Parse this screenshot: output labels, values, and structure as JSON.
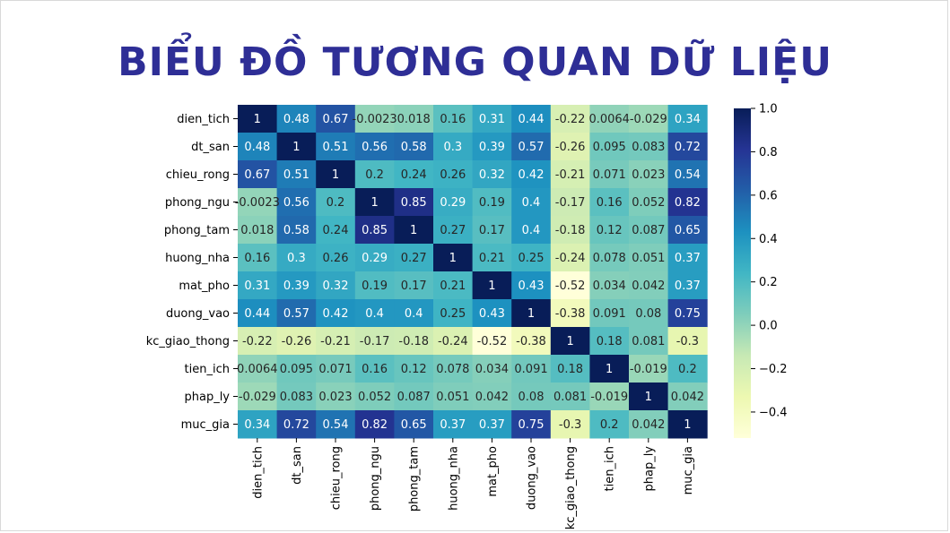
{
  "slide": {
    "title": "BIỂU ĐỒ TƯƠNG QUAN DỮ LIỆU"
  },
  "chart_data": {
    "type": "heatmap",
    "title": "",
    "colormap": "YlGnBu",
    "labels": [
      "dien_tich",
      "dt_san",
      "chieu_rong",
      "phong_ngu",
      "phong_tam",
      "huong_nha",
      "mat_pho",
      "duong_vao",
      "kc_giao_thong",
      "tien_ich",
      "phap_ly",
      "muc_gia"
    ],
    "matrix": [
      [
        1,
        0.48,
        0.67,
        -0.0023,
        0.018,
        0.16,
        0.31,
        0.44,
        -0.22,
        0.0064,
        -0.029,
        0.34
      ],
      [
        0.48,
        1,
        0.51,
        0.56,
        0.58,
        0.3,
        0.39,
        0.57,
        -0.26,
        0.095,
        0.083,
        0.72
      ],
      [
        0.67,
        0.51,
        1,
        0.2,
        0.24,
        0.26,
        0.32,
        0.42,
        -0.21,
        0.071,
        0.023,
        0.54
      ],
      [
        -0.0023,
        0.56,
        0.2,
        1,
        0.85,
        0.29,
        0.19,
        0.4,
        -0.17,
        0.16,
        0.052,
        0.82
      ],
      [
        0.018,
        0.58,
        0.24,
        0.85,
        1,
        0.27,
        0.17,
        0.4,
        -0.18,
        0.12,
        0.087,
        0.65
      ],
      [
        0.16,
        0.3,
        0.26,
        0.29,
        0.27,
        1,
        0.21,
        0.25,
        -0.24,
        0.078,
        0.051,
        0.37
      ],
      [
        0.31,
        0.39,
        0.32,
        0.19,
        0.17,
        0.21,
        1,
        0.43,
        -0.52,
        0.034,
        0.042,
        0.37
      ],
      [
        0.44,
        0.57,
        0.42,
        0.4,
        0.4,
        0.25,
        0.43,
        1,
        -0.38,
        0.091,
        0.08,
        0.75
      ],
      [
        -0.22,
        -0.26,
        -0.21,
        -0.17,
        -0.18,
        -0.24,
        -0.52,
        -0.38,
        1,
        0.18,
        0.081,
        -0.3
      ],
      [
        0.0064,
        0.095,
        0.071,
        0.16,
        0.12,
        0.078,
        0.034,
        0.091,
        0.18,
        1,
        -0.019,
        0.2
      ],
      [
        -0.029,
        0.083,
        0.023,
        0.052,
        0.087,
        0.051,
        0.042,
        0.08,
        0.081,
        -0.019,
        1,
        0.042
      ],
      [
        0.34,
        0.72,
        0.54,
        0.82,
        0.65,
        0.37,
        0.37,
        0.75,
        -0.3,
        0.2,
        0.042,
        1
      ]
    ],
    "cell_text": [
      [
        "1",
        "0.48",
        "0.67",
        "-0.0023",
        "0.018",
        "0.16",
        "0.31",
        "0.44",
        "-0.22",
        "0.0064",
        "-0.029",
        "0.34"
      ],
      [
        "0.48",
        "1",
        "0.51",
        "0.56",
        "0.58",
        "0.3",
        "0.39",
        "0.57",
        "-0.26",
        "0.095",
        "0.083",
        "0.72"
      ],
      [
        "0.67",
        "0.51",
        "1",
        "0.2",
        "0.24",
        "0.26",
        "0.32",
        "0.42",
        "-0.21",
        "0.071",
        "0.023",
        "0.54"
      ],
      [
        "-0.0023",
        "0.56",
        "0.2",
        "1",
        "0.85",
        "0.29",
        "0.19",
        "0.4",
        "-0.17",
        "0.16",
        "0.052",
        "0.82"
      ],
      [
        "0.018",
        "0.58",
        "0.24",
        "0.85",
        "1",
        "0.27",
        "0.17",
        "0.4",
        "-0.18",
        "0.12",
        "0.087",
        "0.65"
      ],
      [
        "0.16",
        "0.3",
        "0.26",
        "0.29",
        "0.27",
        "1",
        "0.21",
        "0.25",
        "-0.24",
        "0.078",
        "0.051",
        "0.37"
      ],
      [
        "0.31",
        "0.39",
        "0.32",
        "0.19",
        "0.17",
        "0.21",
        "1",
        "0.43",
        "-0.52",
        "0.034",
        "0.042",
        "0.37"
      ],
      [
        "0.44",
        "0.57",
        "0.42",
        "0.4",
        "0.4",
        "0.25",
        "0.43",
        "1",
        "-0.38",
        "0.091",
        "0.08",
        "0.75"
      ],
      [
        "-0.22",
        "-0.26",
        "-0.21",
        "-0.17",
        "-0.18",
        "-0.24",
        "-0.52",
        "-0.38",
        "1",
        "0.18",
        "0.081",
        "-0.3"
      ],
      [
        "0.0064",
        "0.095",
        "0.071",
        "0.16",
        "0.12",
        "0.078",
        "0.034",
        "0.091",
        "0.18",
        "1",
        "-0.019",
        "0.2"
      ],
      [
        "-0.029",
        "0.083",
        "0.023",
        "0.052",
        "0.087",
        "0.051",
        "0.042",
        "0.08",
        "0.081",
        "-0.019",
        "1",
        "0.042"
      ],
      [
        "0.34",
        "0.72",
        "0.54",
        "0.82",
        "0.65",
        "0.37",
        "0.37",
        "0.75",
        "-0.3",
        "0.2",
        "0.042",
        "1"
      ]
    ],
    "vmin": -0.52,
    "vmax": 1.0,
    "colorbar_ticks": [
      1.0,
      0.8,
      0.6,
      0.4,
      0.2,
      0.0,
      -0.2,
      -0.4
    ],
    "colorbar_tick_labels": [
      "1.0",
      "0.8",
      "0.6",
      "0.4",
      "0.2",
      "0.0",
      "−0.2",
      "−0.4"
    ],
    "legend_position": "right"
  }
}
